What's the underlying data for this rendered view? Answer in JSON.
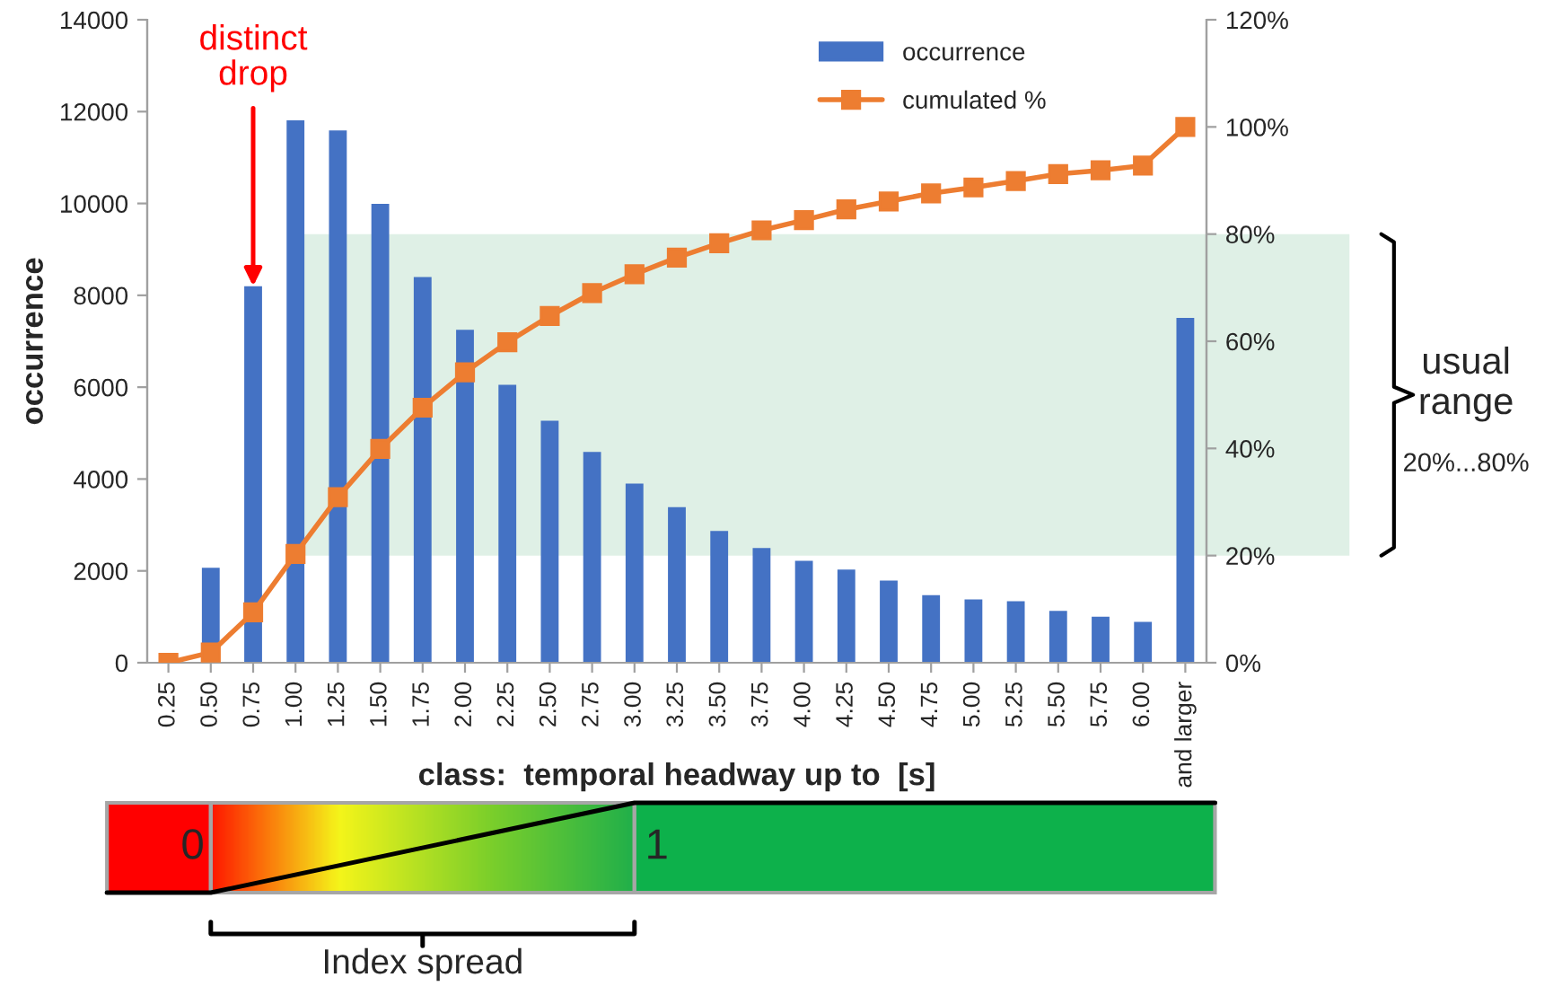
{
  "chart_data": {
    "type": "bar",
    "xlabel": "class:  temporal headway up to  [s]",
    "ylabel": "occurrence",
    "categories": [
      "0.25",
      "0.50",
      "0.75",
      "1.00",
      "1.25",
      "1.50",
      "1.75",
      "2.00",
      "2.25",
      "2.50",
      "2.75",
      "3.00",
      "3.25",
      "3.50",
      "3.75",
      "4.00",
      "4.25",
      "4.50",
      "4.75",
      "5.00",
      "5.25",
      "5.50",
      "5.75",
      "6.00",
      "and larger"
    ],
    "series": [
      {
        "name": "occurrence",
        "color": "#4472c4",
        "values": [
          0,
          2070,
          8200,
          11810,
          11590,
          9990,
          8400,
          7250,
          6050,
          5270,
          4590,
          3900,
          3390,
          2870,
          2500,
          2220,
          2030,
          1790,
          1470,
          1380,
          1340,
          1130,
          1000,
          890,
          7510
        ]
      },
      {
        "name": "cumulated %",
        "type": "line",
        "axis": "y2",
        "color": "#ed7d31",
        "marker": "square",
        "line_style": "solid",
        "values": [
          0,
          1.9,
          9.4,
          20.3,
          30.9,
          39.9,
          47.6,
          54.2,
          59.8,
          64.7,
          69.0,
          72.5,
          75.6,
          78.3,
          80.7,
          82.6,
          84.6,
          86.1,
          87.6,
          88.7,
          89.9,
          91.2,
          91.9,
          92.8,
          100
        ]
      }
    ],
    "ylim": [
      0,
      14000
    ],
    "yticks": [
      0,
      2000,
      4000,
      6000,
      8000,
      10000,
      12000,
      14000
    ],
    "y2lim": [
      0,
      120
    ],
    "y2ticks": [
      {
        "value": 0,
        "label": "0%"
      },
      {
        "value": 20,
        "label": "20%"
      },
      {
        "value": 40,
        "label": "40%"
      },
      {
        "value": 60,
        "label": "60%"
      },
      {
        "value": 80,
        "label": "80%"
      },
      {
        "value": 100,
        "label": "100%"
      },
      {
        "value": 120,
        "label": "120%"
      }
    ],
    "bands": [
      {
        "axis": "y2",
        "from": 20,
        "to": 80,
        "label": "usual range",
        "color": "#dff0e6"
      }
    ],
    "annotations": [
      {
        "text": "distinct drop",
        "x": "0.75",
        "y": 8200
      },
      "20%...80%",
      "0",
      "1",
      "Index spread"
    ],
    "legend": "top right",
    "grid": false
  }
}
